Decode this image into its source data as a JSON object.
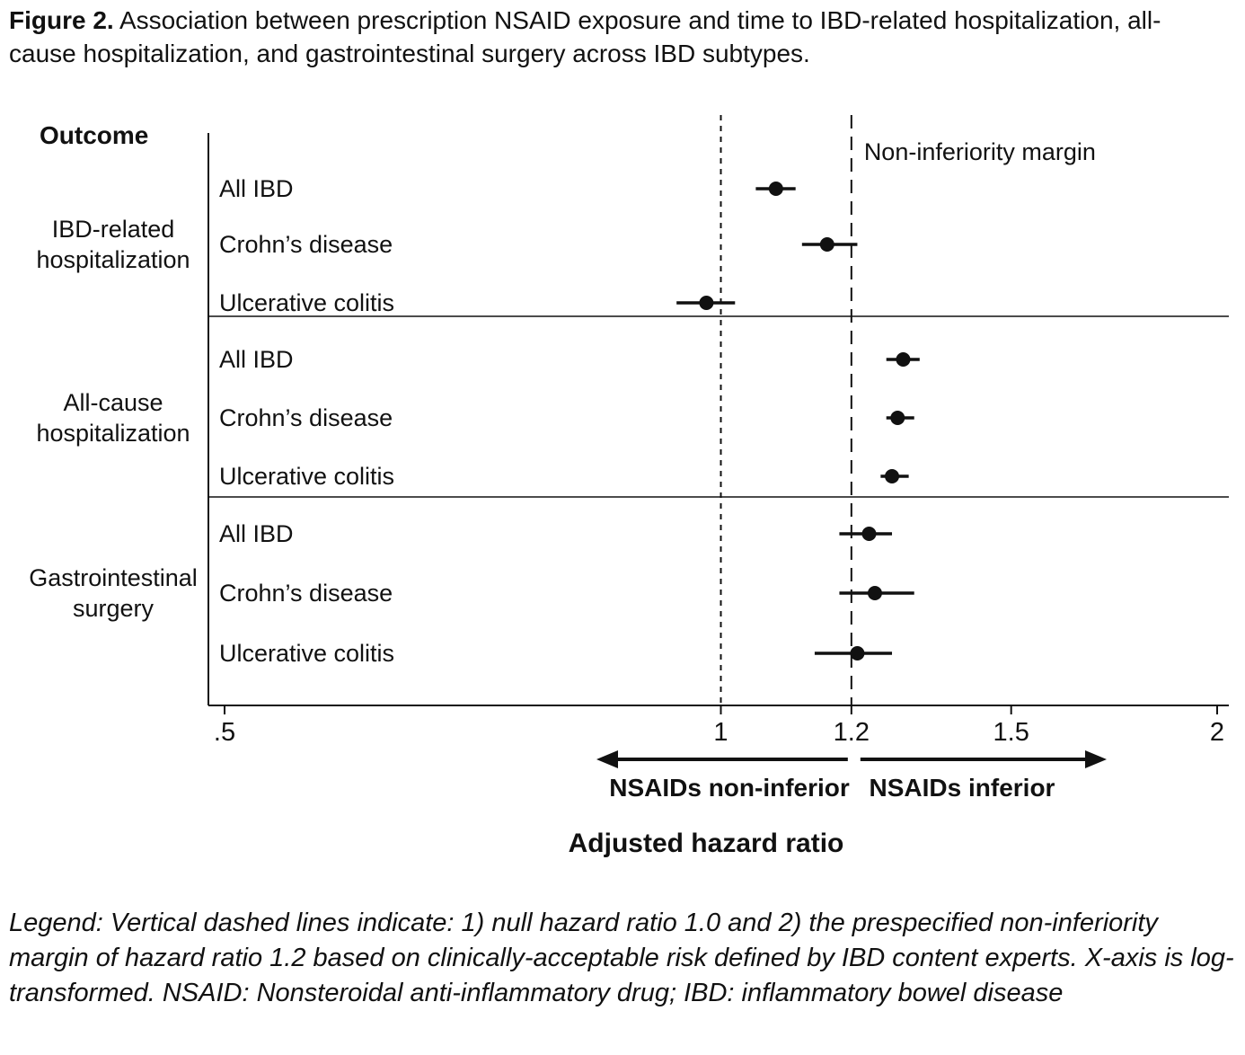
{
  "colors": {
    "ink": "#111111",
    "background": "#ffffff"
  },
  "figure": {
    "label": "Figure 2.",
    "caption": "Association between prescription NSAID exposure and time to IBD-related hospitalization, all-cause hospitalization, and gastrointestinal surgery across IBD subtypes.",
    "legend": "Legend: Vertical dashed lines indicate: 1) null hazard ratio 1.0 and 2) the prespecified non-inferiority margin of hazard ratio 1.2 based on clinically-acceptable risk defined by IBD content experts. X-axis is log-transformed. NSAID: Nonsteroidal anti-inflammatory drug; IBD: inflammatory bowel disease"
  },
  "chart_data": {
    "type": "scatter",
    "subtype": "forest-plot",
    "xlabel": "Adjusted hazard ratio",
    "x_scale": "log",
    "x_ticks": [
      {
        "value": 0.5,
        "label": ".5"
      },
      {
        "value": 1,
        "label": "1"
      },
      {
        "value": 1.2,
        "label": "1.2"
      },
      {
        "value": 1.5,
        "label": "1.5"
      },
      {
        "value": 2,
        "label": "2"
      }
    ],
    "outcome_header": "Outcome",
    "reference_lines": [
      {
        "value": 1.0,
        "style": "dashed",
        "label": ""
      },
      {
        "value": 1.2,
        "style": "dashed",
        "label": "Non-inferiority margin"
      }
    ],
    "groups": [
      {
        "name": "IBD-related hospitalization",
        "rows": [
          {
            "label": "All IBD",
            "hr": 1.08,
            "ci_low": 1.05,
            "ci_high": 1.11
          },
          {
            "label": "Crohn’s disease",
            "hr": 1.16,
            "ci_low": 1.12,
            "ci_high": 1.21
          },
          {
            "label": "Ulcerative colitis",
            "hr": 0.98,
            "ci_low": 0.94,
            "ci_high": 1.02
          }
        ]
      },
      {
        "name": "All-cause hospitalization",
        "rows": [
          {
            "label": "All IBD",
            "hr": 1.29,
            "ci_low": 1.26,
            "ci_high": 1.32
          },
          {
            "label": "Crohn’s disease",
            "hr": 1.28,
            "ci_low": 1.26,
            "ci_high": 1.31
          },
          {
            "label": "Ulcerative colitis",
            "hr": 1.27,
            "ci_low": 1.25,
            "ci_high": 1.3
          }
        ]
      },
      {
        "name": "Gastrointestinal surgery",
        "rows": [
          {
            "label": "All IBD",
            "hr": 1.23,
            "ci_low": 1.18,
            "ci_high": 1.27
          },
          {
            "label": "Crohn’s disease",
            "hr": 1.24,
            "ci_low": 1.18,
            "ci_high": 1.31
          },
          {
            "label": "Ulcerative colitis",
            "hr": 1.21,
            "ci_low": 1.14,
            "ci_high": 1.27
          }
        ]
      }
    ],
    "annotations": {
      "non_inferior_arrow": "NSAIDs non-inferior",
      "inferior_arrow": "NSAIDs inferior"
    }
  }
}
